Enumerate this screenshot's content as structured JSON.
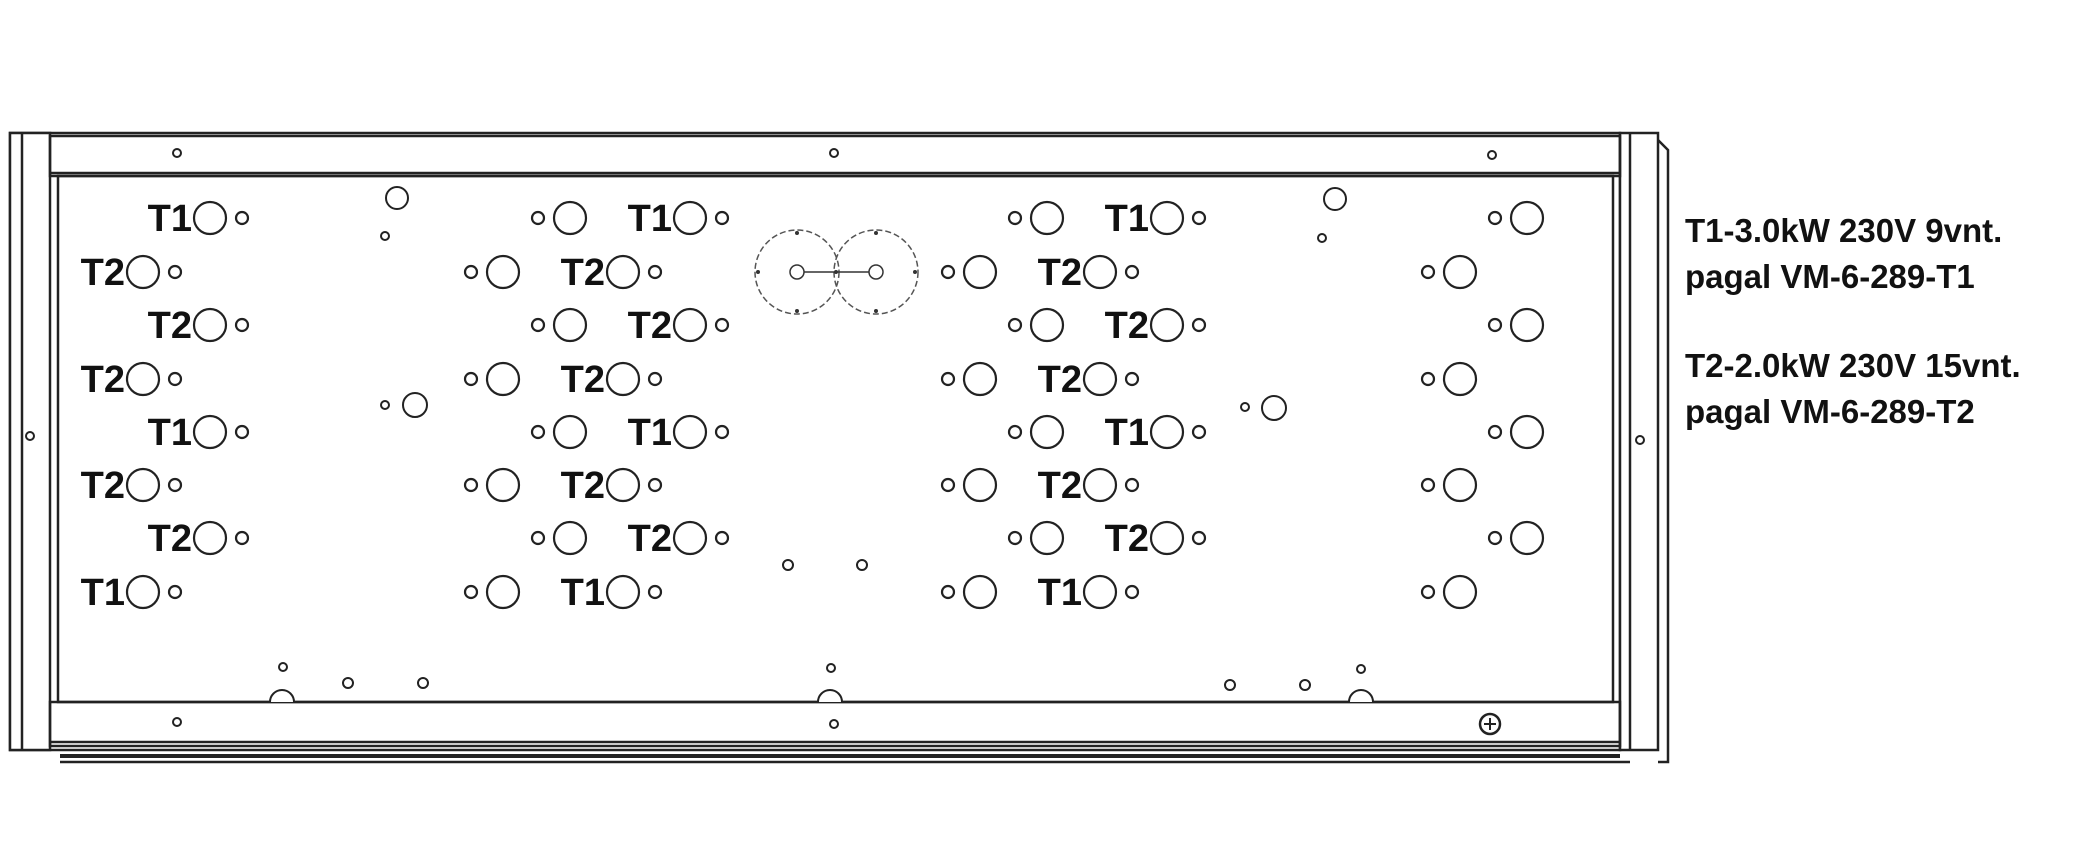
{
  "legend": {
    "t1_line1": "T1-3.0kW 230V 9vnt.",
    "t1_line2": "pagal VM-6-289-T1",
    "t2_line1": "T2-2.0kW 230V 15vnt.",
    "t2_line2": "pagal VM-6-289-T2"
  },
  "heater_labels": {
    "col1": [
      "T1",
      "T2",
      "T2",
      "T2",
      "T1",
      "T2",
      "T2",
      "T1"
    ],
    "col2": [
      "T1",
      "T2",
      "T2",
      "T2",
      "T1",
      "T2",
      "T2",
      "T1"
    ],
    "col3": [
      "T1",
      "T2",
      "T2",
      "T2",
      "T1",
      "T2",
      "T2",
      "T1"
    ]
  }
}
